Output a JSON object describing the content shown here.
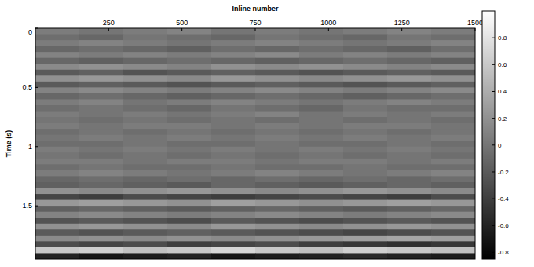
{
  "chart_data": {
    "type": "heatmap",
    "x_label": "Inline number",
    "y_label": "Time (s)",
    "xlim": [
      0,
      1500
    ],
    "ylim": [
      0,
      1.95
    ],
    "xticks": [
      250,
      500,
      750,
      1000,
      1250,
      1500
    ],
    "yticks": [
      0,
      0.5,
      1,
      1.5
    ],
    "x_edges": [
      0,
      150,
      300,
      450,
      600,
      750,
      900,
      1050,
      1200,
      1350,
      1500
    ],
    "y_edges": [
      0,
      0.05,
      0.1,
      0.15,
      0.2,
      0.25,
      0.3,
      0.35,
      0.4,
      0.45,
      0.5,
      0.55,
      0.6,
      0.65,
      0.7,
      0.75,
      0.8,
      0.85,
      0.9,
      0.95,
      1,
      1.05,
      1.1,
      1.15,
      1.2,
      1.25,
      1.3,
      1.35,
      1.4,
      1.45,
      1.5,
      1.55,
      1.6,
      1.65,
      1.7,
      1.75,
      1.8,
      1.85,
      1.9,
      1.95
    ],
    "z": [
      [
        0.05,
        0.0,
        0.05,
        0.1,
        0.0,
        0.05,
        0.0,
        0.05,
        0.1,
        0.05
      ],
      [
        -0.05,
        -0.1,
        0.0,
        -0.05,
        -0.1,
        0.0,
        -0.05,
        -0.1,
        0.0,
        -0.05
      ],
      [
        0.05,
        0.1,
        0.05,
        0.0,
        0.05,
        0.1,
        0.05,
        0.0,
        0.05,
        0.1
      ],
      [
        -0.1,
        -0.05,
        -0.1,
        -0.15,
        -0.05,
        -0.1,
        -0.05,
        -0.1,
        -0.15,
        -0.05
      ],
      [
        0.1,
        0.05,
        0.1,
        0.05,
        0.1,
        0.15,
        0.05,
        0.1,
        0.05,
        0.1
      ],
      [
        -0.1,
        -0.15,
        -0.1,
        -0.05,
        -0.1,
        -0.15,
        -0.1,
        -0.05,
        -0.1,
        -0.15
      ],
      [
        0.15,
        0.2,
        0.15,
        0.1,
        0.2,
        0.15,
        0.2,
        0.15,
        0.1,
        0.15
      ],
      [
        -0.2,
        -0.15,
        -0.25,
        -0.2,
        -0.15,
        -0.2,
        -0.25,
        -0.2,
        -0.15,
        -0.2
      ],
      [
        0.2,
        0.25,
        0.2,
        0.15,
        0.25,
        0.2,
        0.15,
        0.2,
        0.25,
        0.2
      ],
      [
        -0.2,
        -0.15,
        -0.2,
        -0.25,
        -0.2,
        -0.15,
        -0.2,
        -0.25,
        -0.2,
        -0.15
      ],
      [
        0.1,
        0.15,
        0.1,
        0.05,
        0.1,
        0.15,
        0.1,
        0.05,
        0.1,
        0.15
      ],
      [
        -0.1,
        -0.05,
        -0.1,
        -0.15,
        -0.1,
        -0.05,
        -0.1,
        -0.15,
        -0.1,
        -0.05
      ],
      [
        0.05,
        0.1,
        0.0,
        0.05,
        0.1,
        0.05,
        0.0,
        0.05,
        0.1,
        0.05
      ],
      [
        -0.05,
        0.0,
        -0.05,
        -0.1,
        0.0,
        -0.05,
        -0.1,
        0.0,
        -0.05,
        -0.05
      ],
      [
        0.05,
        0.0,
        0.05,
        0.0,
        0.05,
        0.1,
        0.0,
        0.05,
        0.0,
        0.05
      ],
      [
        0.0,
        -0.05,
        0.0,
        -0.05,
        0.0,
        -0.05,
        0.0,
        -0.05,
        0.0,
        -0.05
      ],
      [
        0.05,
        0.0,
        0.05,
        0.05,
        0.0,
        0.05,
        0.0,
        0.05,
        0.05,
        0.0
      ],
      [
        -0.05,
        0.0,
        -0.05,
        0.0,
        -0.05,
        0.0,
        -0.05,
        0.0,
        -0.05,
        0.0
      ],
      [
        0.0,
        0.05,
        0.0,
        0.05,
        0.0,
        0.05,
        0.0,
        0.05,
        0.0,
        0.05
      ],
      [
        -0.05,
        -0.05,
        0.0,
        -0.05,
        -0.05,
        0.0,
        -0.05,
        -0.05,
        0.0,
        -0.05
      ],
      [
        0.05,
        0.0,
        0.05,
        0.0,
        0.05,
        0.0,
        0.05,
        0.0,
        0.05,
        0.0
      ],
      [
        0.0,
        -0.05,
        0.0,
        -0.05,
        0.0,
        -0.05,
        0.0,
        -0.05,
        0.0,
        -0.05
      ],
      [
        0.05,
        0.05,
        0.0,
        0.05,
        0.05,
        0.0,
        0.05,
        0.05,
        0.0,
        0.05
      ],
      [
        -0.05,
        0.0,
        -0.05,
        -0.05,
        0.0,
        -0.05,
        -0.05,
        0.0,
        -0.05,
        -0.05
      ],
      [
        0.05,
        0.1,
        0.05,
        0.0,
        0.05,
        0.1,
        0.05,
        0.0,
        0.05,
        0.1
      ],
      [
        -0.1,
        -0.05,
        -0.1,
        -0.05,
        -0.1,
        -0.05,
        -0.1,
        -0.05,
        -0.1,
        -0.05
      ],
      [
        -0.15,
        -0.1,
        -0.15,
        -0.2,
        -0.1,
        -0.15,
        -0.2,
        -0.15,
        -0.1,
        -0.15
      ],
      [
        0.2,
        0.15,
        0.2,
        0.25,
        0.2,
        0.15,
        0.2,
        0.25,
        0.2,
        0.15
      ],
      [
        -0.35,
        -0.4,
        -0.3,
        -0.35,
        -0.4,
        -0.35,
        -0.3,
        -0.35,
        -0.4,
        -0.3
      ],
      [
        0.25,
        0.3,
        0.25,
        0.2,
        0.3,
        0.25,
        0.2,
        0.25,
        0.3,
        0.25
      ],
      [
        -0.15,
        -0.1,
        -0.15,
        -0.2,
        -0.15,
        -0.1,
        -0.15,
        -0.2,
        -0.15,
        -0.1
      ],
      [
        0.1,
        0.15,
        0.1,
        0.05,
        0.1,
        0.15,
        0.1,
        0.05,
        0.1,
        0.15
      ],
      [
        -0.25,
        -0.2,
        -0.25,
        -0.3,
        -0.2,
        -0.25,
        -0.3,
        -0.25,
        -0.2,
        -0.25
      ],
      [
        0.2,
        0.25,
        0.2,
        0.15,
        0.25,
        0.2,
        0.15,
        0.2,
        0.25,
        0.2
      ],
      [
        -0.2,
        -0.25,
        -0.2,
        -0.15,
        -0.2,
        -0.25,
        -0.3,
        -0.35,
        -0.3,
        -0.25
      ],
      [
        0.15,
        0.2,
        0.15,
        0.2,
        0.15,
        0.2,
        0.25,
        0.3,
        0.35,
        0.3
      ],
      [
        -0.3,
        -0.35,
        -0.3,
        -0.4,
        -0.35,
        -0.3,
        -0.4,
        -0.45,
        -0.5,
        -0.45
      ],
      [
        0.6,
        0.65,
        0.55,
        0.6,
        0.7,
        0.6,
        0.55,
        0.65,
        0.6,
        0.55
      ],
      [
        -0.6,
        -0.7,
        -0.65,
        -0.6,
        -0.7,
        -0.65,
        -0.6,
        -0.55,
        -0.6,
        -0.65
      ]
    ],
    "colorbar": {
      "range": [
        -0.85,
        1
      ],
      "ticks": [
        0.8,
        0.6,
        0.4,
        0.2,
        0,
        -0.2,
        -0.4,
        -0.6,
        -0.8
      ]
    }
  }
}
